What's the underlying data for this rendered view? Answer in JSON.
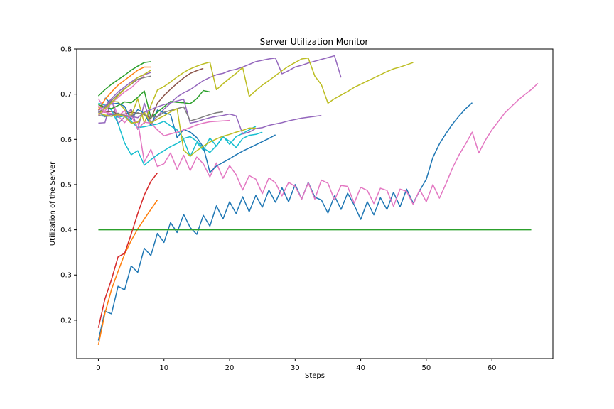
{
  "chart_data": {
    "type": "line",
    "title": "Server Utilization Monitor",
    "xlabel": "Steps",
    "ylabel": "Utilization of the Server",
    "xlim": [
      -3.3,
      69.3
    ],
    "ylim": [
      0.115,
      0.8
    ],
    "xticks": [
      0,
      10,
      20,
      30,
      40,
      50,
      60
    ],
    "yticks": [
      0.2,
      0.3,
      0.4,
      0.5,
      0.6,
      0.7,
      0.8
    ],
    "xtick_labels": [
      "0",
      "10",
      "20",
      "30",
      "40",
      "50",
      "60"
    ],
    "ytick_labels": [
      "0.2",
      "0.3",
      "0.4",
      "0.5",
      "0.6",
      "0.7",
      "0.8"
    ],
    "grid": false,
    "legend": "none",
    "series": [
      {
        "color": "#1f77b4",
        "values": [
          0.155,
          0.22,
          0.214,
          0.275,
          0.267,
          0.32,
          0.306,
          0.359,
          0.343,
          0.392,
          0.372,
          0.416,
          0.394,
          0.434,
          0.405,
          0.39,
          0.432,
          0.408,
          0.453,
          0.424,
          0.462,
          0.436,
          0.473,
          0.44,
          0.476,
          0.45,
          0.488,
          0.461,
          0.493,
          0.462,
          0.5,
          0.468,
          0.505,
          0.472,
          0.466,
          0.437,
          0.475,
          0.445,
          0.481,
          0.455,
          0.423,
          0.462,
          0.433,
          0.471,
          0.445,
          0.483,
          0.451,
          0.49,
          0.459,
          0.487,
          0.512,
          0.56,
          0.59,
          0.613,
          0.634,
          0.652,
          0.668,
          0.681
        ]
      },
      {
        "color": "#ff7f0e",
        "values": [
          0.145,
          0.215,
          0.268,
          0.308,
          0.346,
          0.376,
          0.402,
          0.424,
          0.445,
          0.466
        ]
      },
      {
        "color": "#2ca02c",
        "values": [
          0.4,
          0.4,
          0.4,
          0.4,
          0.4,
          0.4,
          0.4,
          0.4,
          0.4,
          0.4,
          0.4,
          0.4,
          0.4,
          0.4,
          0.4,
          0.4,
          0.4,
          0.4,
          0.4,
          0.4,
          0.4,
          0.4,
          0.4,
          0.4,
          0.4,
          0.4,
          0.4,
          0.4,
          0.4,
          0.4,
          0.4,
          0.4,
          0.4,
          0.4,
          0.4,
          0.4,
          0.4,
          0.4,
          0.4,
          0.4,
          0.4,
          0.4,
          0.4,
          0.4,
          0.4,
          0.4,
          0.4,
          0.4,
          0.4,
          0.4,
          0.4,
          0.4,
          0.4,
          0.4,
          0.4,
          0.4,
          0.4,
          0.4,
          0.4,
          0.4,
          0.4,
          0.4,
          0.4,
          0.4,
          0.4,
          0.4,
          0.4
        ]
      },
      {
        "color": "#d62728",
        "values": [
          0.183,
          0.247,
          0.29,
          0.34,
          0.348,
          0.39,
          0.436,
          0.477,
          0.507,
          0.526
        ]
      },
      {
        "color": "#9467bd",
        "values": [
          0.636,
          0.637,
          0.69,
          0.635,
          0.65,
          0.667,
          0.622,
          0.68,
          0.636,
          0.651,
          0.667,
          0.68,
          0.694,
          0.703,
          0.71,
          0.72,
          0.73,
          0.737,
          0.743,
          0.746,
          0.752,
          0.755,
          0.76,
          0.766,
          0.772,
          0.775,
          0.778,
          0.78,
          0.745,
          0.752,
          0.76,
          0.764,
          0.769,
          0.773,
          0.777,
          0.781,
          0.785,
          0.737
        ]
      },
      {
        "color": "#8c564b",
        "values": [
          0.662,
          0.66,
          0.662,
          0.656,
          0.656,
          0.66,
          0.658,
          0.655,
          0.646,
          0.68,
          0.697,
          0.711,
          0.724,
          0.736,
          0.746,
          0.752,
          0.757
        ]
      },
      {
        "color": "#e377c2",
        "values": [
          0.69,
          0.667,
          0.69,
          0.651,
          0.664,
          0.636,
          0.64,
          0.55,
          0.578,
          0.54,
          0.546,
          0.57,
          0.534,
          0.565,
          0.531,
          0.561,
          0.546,
          0.517,
          0.548,
          0.514,
          0.542,
          0.522,
          0.488,
          0.52,
          0.512,
          0.48,
          0.515,
          0.504,
          0.475,
          0.505,
          0.496,
          0.468,
          0.504,
          0.468,
          0.51,
          0.503,
          0.466,
          0.498,
          0.496,
          0.459,
          0.494,
          0.487,
          0.458,
          0.492,
          0.487,
          0.452,
          0.49,
          0.485,
          0.456,
          0.489,
          0.462,
          0.5,
          0.47,
          0.502,
          0.537,
          0.566,
          0.59,
          0.616,
          0.57,
          0.598,
          0.621,
          0.64,
          0.659,
          0.673,
          0.687,
          0.699,
          0.71,
          0.724
        ]
      },
      {
        "color": "#bcbd22",
        "values": [
          0.67,
          0.672,
          0.684,
          0.683,
          0.666,
          0.652,
          0.69,
          0.636,
          0.675,
          0.709,
          0.717,
          0.727,
          0.738,
          0.748,
          0.756,
          0.762,
          0.767,
          0.771,
          0.71,
          0.723,
          0.735,
          0.746,
          0.759,
          0.695,
          0.708,
          0.72,
          0.73,
          0.741,
          0.752,
          0.762,
          0.77,
          0.778,
          0.78,
          0.74,
          0.721,
          0.68,
          0.69,
          0.698,
          0.706,
          0.715,
          0.722,
          0.729,
          0.736,
          0.743,
          0.75,
          0.756,
          0.76,
          0.765,
          0.77
        ]
      },
      {
        "color": "#17becf",
        "values": [
          0.68,
          0.676,
          0.665,
          0.635,
          0.592,
          0.566,
          0.575,
          0.543,
          0.555,
          0.566,
          0.575,
          0.584,
          0.591,
          0.6,
          0.562,
          0.593,
          0.576,
          0.603,
          0.585,
          0.607,
          0.589,
          0.606,
          0.613,
          0.621,
          0.629
        ]
      }
    ]
  },
  "extra_lines": [
    {
      "color": "#1f77b4",
      "x0": 1,
      "values": [
        0.692,
        0.678,
        0.68,
        0.673,
        0.643,
        0.666,
        0.658,
        0.63,
        0.665,
        0.659,
        0.655,
        0.604,
        0.622,
        0.616,
        0.604,
        0.583,
        0.527,
        0.541,
        0.549,
        0.557,
        0.566,
        0.574,
        0.581,
        0.588,
        0.595,
        0.602,
        0.61
      ]
    },
    {
      "color": "#ff7f0e",
      "x0": 0,
      "values": [
        0.665,
        0.688,
        0.705,
        0.72,
        0.731,
        0.742,
        0.753,
        0.76,
        0.76
      ]
    },
    {
      "color": "#2ca02c",
      "x0": 0,
      "values": [
        0.696,
        0.71,
        0.722,
        0.732,
        0.742,
        0.753,
        0.762,
        0.77,
        0.772
      ]
    },
    {
      "color": "#2ca02c",
      "x0": 0,
      "values": [
        0.677,
        0.671,
        0.668,
        0.675,
        0.683,
        0.681,
        0.693,
        0.707,
        0.648,
        0.66,
        0.672,
        0.684,
        0.682,
        0.681,
        0.679,
        0.69,
        0.708,
        0.705
      ]
    },
    {
      "color": "#9467bd",
      "x0": 0,
      "values": [
        0.664,
        0.674,
        0.69,
        0.705,
        0.716,
        0.727,
        0.737,
        0.743,
        0.748
      ]
    },
    {
      "color": "#e377c2",
      "x0": 0,
      "values": [
        0.653,
        0.663,
        0.68,
        0.693,
        0.705,
        0.714,
        0.728,
        0.741
      ]
    },
    {
      "color": "#7f7f7f",
      "x0": 0,
      "values": [
        0.66,
        0.67,
        0.686,
        0.7,
        0.712,
        0.722,
        0.733,
        0.737,
        0.74
      ]
    },
    {
      "color": "#bcbd22",
      "x0": 0,
      "values": [
        0.655,
        0.668,
        0.681,
        0.697,
        0.711,
        0.723,
        0.737,
        0.744,
        0.753
      ]
    },
    {
      "color": "#17becf",
      "x0": 0,
      "values": [
        0.66,
        0.65,
        0.656,
        0.649,
        0.652,
        0.64,
        0.626,
        0.628,
        0.631,
        0.634,
        0.64,
        0.63,
        0.621,
        0.602,
        0.606,
        0.596,
        0.581,
        0.571,
        0.586,
        0.605,
        0.596,
        0.582,
        0.602,
        0.609,
        0.611,
        0.616
      ]
    },
    {
      "color": "#e377c2",
      "x0": 0,
      "values": [
        0.675,
        0.66,
        0.657,
        0.652,
        0.637,
        0.654,
        0.623,
        0.638,
        0.636,
        0.621,
        0.608,
        0.612,
        0.616,
        0.621,
        0.626,
        0.632,
        0.636,
        0.639,
        0.64,
        0.641,
        0.642
      ]
    },
    {
      "color": "#9467bd",
      "x0": 0,
      "values": [
        0.66,
        0.653,
        0.655,
        0.654,
        0.653,
        0.651,
        0.648,
        0.66,
        0.666,
        0.672,
        0.677,
        0.681,
        0.685,
        0.689,
        0.636,
        0.639,
        0.644,
        0.648,
        0.651,
        0.653,
        0.656,
        0.652,
        0.612,
        0.616,
        0.624,
        0.626,
        0.631,
        0.634,
        0.637,
        0.641,
        0.644,
        0.647,
        0.649,
        0.651,
        0.653
      ]
    },
    {
      "color": "#7f7f7f",
      "x0": 0,
      "values": [
        0.653,
        0.651,
        0.652,
        0.658,
        0.65,
        0.652,
        0.659,
        0.654,
        0.65,
        0.65,
        0.66,
        0.664,
        0.668,
        0.672,
        0.641,
        0.645,
        0.65,
        0.655,
        0.659,
        0.661
      ]
    },
    {
      "color": "#bcbd22",
      "x0": 0,
      "values": [
        0.658,
        0.654,
        0.651,
        0.655,
        0.651,
        0.636,
        0.638,
        0.66,
        0.636,
        0.645,
        0.652,
        0.661,
        0.668,
        0.576,
        0.563,
        0.575,
        0.585,
        0.594,
        0.601,
        0.607,
        0.611,
        0.616,
        0.62,
        0.625,
        0.625
      ]
    }
  ]
}
